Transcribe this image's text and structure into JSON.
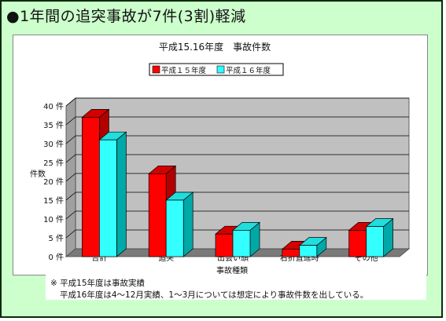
{
  "heading": "●1年間の追突事故が7件(3割)軽減",
  "notes": {
    "line1": "※ 平成15年度は事故実績",
    "line2": "平成16年度は4～12月実績、1～3月については想定により事故件数を出している。"
  },
  "chart_data": {
    "type": "bar",
    "title": "平成15.16年度　事故件数",
    "xlabel": "事故種類",
    "ylabel": "件数",
    "ylim": [
      0,
      40
    ],
    "yticks": [
      "0 件",
      "5 件",
      "10 件",
      "15 件",
      "20 件",
      "25 件",
      "30 件",
      "35 件",
      "40 件"
    ],
    "grid": true,
    "legend_position": "top",
    "categories": [
      "合計",
      "追突",
      "出会い頭",
      "右折直進時",
      "その他"
    ],
    "series": [
      {
        "name": "平成１５年度",
        "values": [
          37,
          22,
          6,
          2,
          7
        ],
        "color": "#ff0000",
        "side": "#b00000",
        "top": "#d40000"
      },
      {
        "name": "平成１６年度",
        "values": [
          31,
          15,
          7,
          3,
          8
        ],
        "color": "#33ffff",
        "side": "#00a8a8",
        "top": "#22dddd"
      }
    ]
  }
}
